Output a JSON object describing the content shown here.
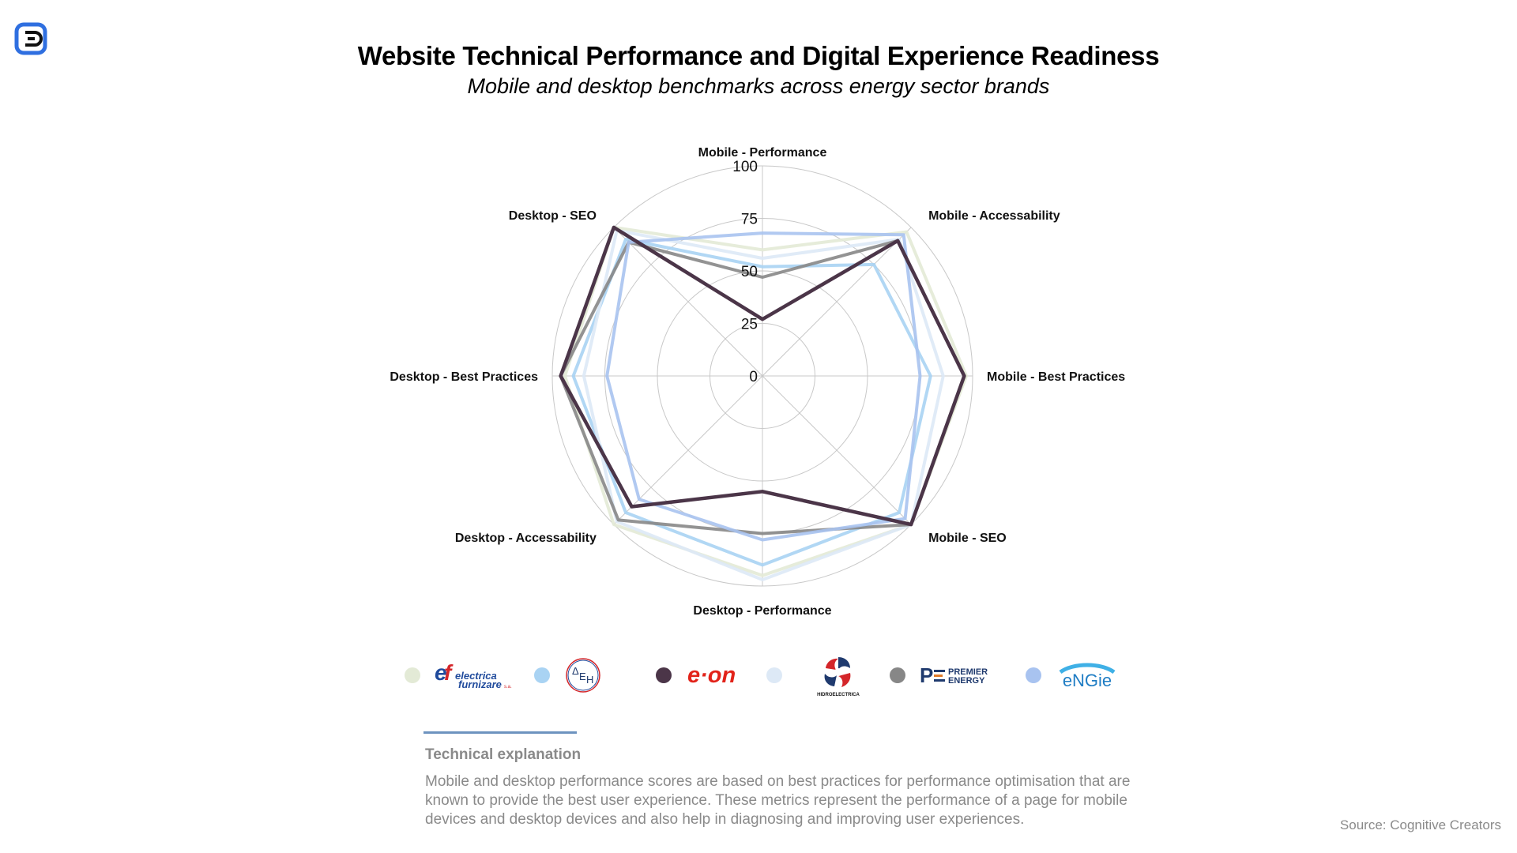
{
  "header": {
    "title": "Website Technical Performance and Digital Experience Readiness",
    "subtitle": "Mobile and desktop benchmarks across energy sector brands"
  },
  "chart_data": {
    "type": "radar",
    "title": "Website Technical Performance and Digital Experience Readiness",
    "subtitle": "Mobile and desktop benchmarks across energy sector brands",
    "axes": [
      "Mobile - Performance",
      "Mobile - Accessability",
      "Mobile - Best Practices",
      "Mobile - SEO",
      "Desktop - Performance",
      "Desktop - Accessability",
      "Desktop - Best Practices",
      "Desktop - SEO"
    ],
    "range": [
      0,
      100
    ],
    "ticks": [
      0,
      25,
      50,
      75,
      100
    ],
    "grid": true,
    "legend_placement": "bottom",
    "series": [
      {
        "color": "#e3ead6",
        "values": [
          60,
          97,
          97,
          100,
          95,
          100,
          94,
          100
        ]
      },
      {
        "color": "#a9d3f3",
        "values": [
          52,
          75,
          80,
          92,
          90,
          92,
          90,
          92
        ]
      },
      {
        "color": "#4b3548",
        "values": [
          27,
          91,
          96,
          100,
          55,
          88,
          96,
          100
        ]
      },
      {
        "color": "#dde9f6",
        "values": [
          56,
          92,
          86,
          100,
          97,
          98,
          85,
          98
        ]
      },
      {
        "color": "#878787",
        "values": [
          47,
          91,
          96,
          100,
          75,
          97,
          96,
          90
        ]
      },
      {
        "color": "#a8c3f0",
        "values": [
          68,
          95,
          75,
          96,
          78,
          83,
          74,
          90
        ]
      }
    ],
    "legend_logos": [
      "electrica furnizare s.a.",
      "ΔEH",
      "e·on",
      "HIDROELECTRICA",
      "PREMIER ENERGY",
      "eNGie"
    ]
  },
  "explanation": {
    "heading": "Technical explanation",
    "body": "Mobile and desktop performance scores are based on best practices for performance optimisation that are known to provide the best user experience. These metrics represent the performance of a page for mobile devices and desktop devices and also help in diagnosing and improving user experiences."
  },
  "source": "Source: Cognitive Creators",
  "icons": {
    "brand": "cognitive-creators-logo-icon"
  }
}
